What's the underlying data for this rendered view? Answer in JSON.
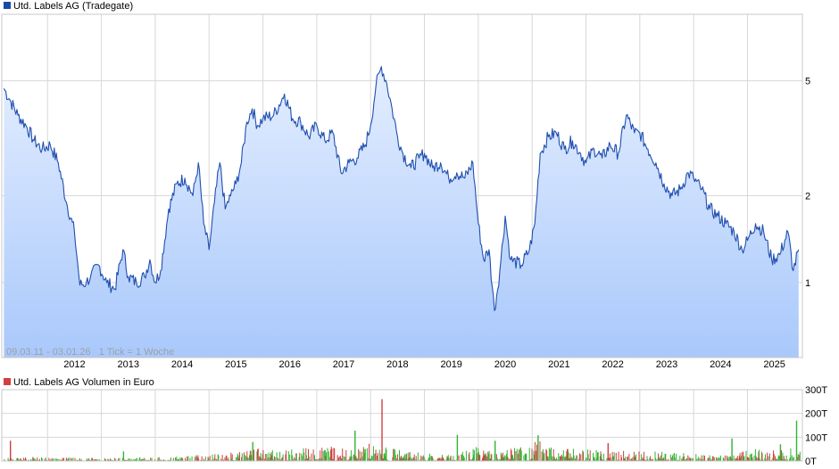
{
  "chart_data": [
    {
      "type": "area",
      "title": "Utd. Labels AG (Tradegate)",
      "legend_color": "#1a4aa8",
      "legend_placement": "top-left",
      "line_color": "#1f4fb0",
      "fill_top_color": "#e4eeff",
      "fill_bottom_color": "#a9c8fb",
      "info_text": "09.03.11 - 03.01.26   1 Tick = 1 Woche",
      "y_scale": "log",
      "ylim": [
        0.55,
        8.5
      ],
      "y_ticks": [
        "5",
        "2",
        "1"
      ],
      "x_ticks": [
        "2012",
        "2013",
        "2014",
        "2015",
        "2016",
        "2017",
        "2018",
        "2019",
        "2020",
        "2021",
        "2022",
        "2023",
        "2024",
        "2025"
      ],
      "grid": true,
      "series": [
        {
          "x": [
            2011.19,
            2011.3,
            2011.45,
            2011.6,
            2011.75,
            2011.9,
            2012.05,
            2012.2,
            2012.35,
            2012.5,
            2012.6,
            2012.72,
            2012.8,
            2012.95,
            2013.1,
            2013.25,
            2013.4,
            2013.5,
            2013.65,
            2013.8,
            2013.9,
            2014.0,
            2014.1,
            2014.25,
            2014.4,
            2014.55,
            2014.7,
            2014.8,
            2014.9,
            2015.0,
            2015.1,
            2015.2,
            2015.3,
            2015.4,
            2015.5,
            2015.6,
            2015.7,
            2015.8,
            2015.9,
            2016.0,
            2016.2,
            2016.4,
            2016.55,
            2016.7,
            2016.85,
            2017.0,
            2017.15,
            2017.3,
            2017.45,
            2017.6,
            2017.75,
            2017.9,
            2018.0,
            2018.1,
            2018.2,
            2018.3,
            2018.4,
            2018.5,
            2018.6,
            2018.75,
            2018.9,
            2019.0,
            2019.15,
            2019.3,
            2019.45,
            2019.6,
            2019.75,
            2019.9,
            2020.0,
            2020.1,
            2020.2,
            2020.3,
            2020.4,
            2020.5,
            2020.6,
            2020.8,
            2020.95,
            2021.05,
            2021.15,
            2021.3,
            2021.45,
            2021.6,
            2021.75,
            2021.9,
            2022.0,
            2022.15,
            2022.3,
            2022.45,
            2022.6,
            2022.75,
            2022.9,
            2023.0,
            2023.15,
            2023.3,
            2023.45,
            2023.6,
            2023.75,
            2023.9,
            2024.0,
            2024.15,
            2024.3,
            2024.45,
            2024.6,
            2024.75,
            2024.9,
            2025.0,
            2025.15,
            2025.3,
            2025.45,
            2025.6,
            2025.75,
            2025.85,
            2025.95
          ],
          "values": [
            4.7,
            4.3,
            3.8,
            3.5,
            3.1,
            2.9,
            3.0,
            2.6,
            1.9,
            1.5,
            0.98,
            1.0,
            1.05,
            1.15,
            1.0,
            0.95,
            1.3,
            1.05,
            1.0,
            1.05,
            1.2,
            1.0,
            1.1,
            1.8,
            2.2,
            2.3,
            2.0,
            2.6,
            1.6,
            1.3,
            1.9,
            2.6,
            1.8,
            2.0,
            2.2,
            2.6,
            3.6,
            4.0,
            3.5,
            3.7,
            3.8,
            4.5,
            3.7,
            3.6,
            3.2,
            3.5,
            3.1,
            3.3,
            2.4,
            2.6,
            2.7,
            3.0,
            3.5,
            4.8,
            5.6,
            4.9,
            4.0,
            3.2,
            2.8,
            2.5,
            2.7,
            2.8,
            2.5,
            2.6,
            2.3,
            2.4,
            2.3,
            2.6,
            1.6,
            1.2,
            1.3,
            0.8,
            1.1,
            1.7,
            1.2,
            1.15,
            1.3,
            1.6,
            2.8,
            3.2,
            3.3,
            2.9,
            3.1,
            2.8,
            2.6,
            2.9,
            2.7,
            3.0,
            2.8,
            3.8,
            3.3,
            3.3,
            2.9,
            2.6,
            2.2,
            2.0,
            2.1,
            2.4,
            2.3,
            2.1,
            1.8,
            1.7,
            1.6,
            1.5,
            1.3,
            1.4,
            1.6,
            1.5,
            1.2,
            1.25,
            1.5,
            1.1,
            1.3
          ]
        }
      ]
    },
    {
      "type": "bar",
      "title": "Utd. Labels AG Volumen in Euro",
      "legend_color": "#d04040",
      "legend_placement": "top-left",
      "up_color": "#33b233",
      "down_color": "#d04040",
      "ylim": [
        0,
        300
      ],
      "y_ticks": [
        "300T",
        "200T",
        "100T",
        "0T"
      ],
      "y_tick_values": [
        300,
        200,
        100,
        0
      ],
      "grid": true,
      "volume_profile": {
        "x": [
          2011.19,
          2012.0,
          2013.0,
          2014.0,
          2015.0,
          2015.8,
          2016.5,
          2017.2,
          2017.7,
          2018.1,
          2018.2,
          2018.25,
          2018.6,
          2019.0,
          2019.5,
          2020.0,
          2020.3,
          2020.5,
          2021.0,
          2021.2,
          2021.4,
          2021.9,
          2022.5,
          2022.9,
          2023.4,
          2023.9,
          2024.5,
          2024.8,
          2025.0,
          2025.4,
          2025.8,
          2025.95
        ],
        "values": [
          12,
          10,
          8,
          10,
          18,
          35,
          30,
          40,
          30,
          55,
          40,
          45,
          25,
          22,
          15,
          40,
          25,
          30,
          60,
          50,
          30,
          35,
          30,
          25,
          25,
          20,
          15,
          18,
          35,
          25,
          45,
          30
        ]
      },
      "spikes": [
        {
          "x": 2018.2,
          "value": 260,
          "direction": "down"
        },
        {
          "x": 2025.9,
          "value": 170,
          "direction": "up"
        },
        {
          "x": 2017.7,
          "value": 128,
          "direction": "up"
        },
        {
          "x": 2021.1,
          "value": 108,
          "direction": "up"
        },
        {
          "x": 2019.6,
          "value": 110,
          "direction": "up"
        },
        {
          "x": 2024.7,
          "value": 95,
          "direction": "up"
        },
        {
          "x": 2015.8,
          "value": 80,
          "direction": "up"
        },
        {
          "x": 2020.3,
          "value": 85,
          "direction": "up"
        },
        {
          "x": 2022.4,
          "value": 75,
          "direction": "down"
        },
        {
          "x": 2025.6,
          "value": 70,
          "direction": "up"
        },
        {
          "x": 2011.3,
          "value": 85,
          "direction": "down"
        },
        {
          "x": 2013.4,
          "value": 40,
          "direction": "up"
        }
      ]
    }
  ]
}
